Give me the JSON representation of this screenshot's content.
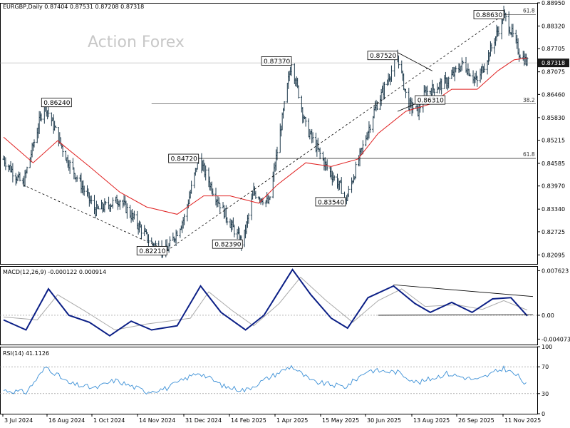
{
  "chart_data": [
    {
      "type": "bar",
      "title": "EURGBP,Daily  0.87404 0.87531 0.87208 0.87318",
      "symbol": "EURGBP",
      "timeframe": "Daily",
      "ohlc": {
        "open": 0.87404,
        "high": 0.87531,
        "low": 0.87208,
        "close": 0.87318
      },
      "current_price": "0.87318",
      "watermark": "Action Forex",
      "ylim": [
        0.8185,
        0.8895
      ],
      "y_ticks": [
        "0.88950",
        "0.88320",
        "0.87705",
        "0.87075",
        "0.86460",
        "0.85830",
        "0.85215",
        "0.84585",
        "0.83970",
        "0.83340",
        "0.82725",
        "0.82095"
      ],
      "x_ticks": [
        "3 Jul 2024",
        "16 Aug 2024",
        "1 Oct 2024",
        "14 Nov 2024",
        "31 Dec 2024",
        "14 Feb 2025",
        "1 Apr 2025",
        "15 May 2025",
        "30 Jun 2025",
        "13 Aug 2025",
        "26 Sep 2025",
        "11 Nov 2025"
      ],
      "price_path": [
        {
          "date": "2024-07-03",
          "price": 0.847
        },
        {
          "date": "2024-07-22",
          "price": 0.84
        },
        {
          "date": "2024-08-12",
          "price": 0.8624
        },
        {
          "date": "2024-09-03",
          "price": 0.847
        },
        {
          "date": "2024-10-01",
          "price": 0.833
        },
        {
          "date": "2024-10-25",
          "price": 0.836
        },
        {
          "date": "2024-11-25",
          "price": 0.824
        },
        {
          "date": "2024-12-10",
          "price": 0.8221
        },
        {
          "date": "2024-12-27",
          "price": 0.831
        },
        {
          "date": "2025-01-10",
          "price": 0.8472
        },
        {
          "date": "2025-01-25",
          "price": 0.838
        },
        {
          "date": "2025-02-07",
          "price": 0.831
        },
        {
          "date": "2025-02-22",
          "price": 0.8239
        },
        {
          "date": "2025-03-05",
          "price": 0.838
        },
        {
          "date": "2025-03-20",
          "price": 0.835
        },
        {
          "date": "2025-04-11",
          "price": 0.8737
        },
        {
          "date": "2025-04-25",
          "price": 0.856
        },
        {
          "date": "2025-05-15",
          "price": 0.845
        },
        {
          "date": "2025-05-30",
          "price": 0.839
        },
        {
          "date": "2025-06-03",
          "price": 0.8354
        },
        {
          "date": "2025-06-15",
          "price": 0.846
        },
        {
          "date": "2025-07-01",
          "price": 0.86
        },
        {
          "date": "2025-07-15",
          "price": 0.869
        },
        {
          "date": "2025-07-24",
          "price": 0.8752
        },
        {
          "date": "2025-08-03",
          "price": 0.862
        },
        {
          "date": "2025-08-13",
          "price": 0.86
        },
        {
          "date": "2025-08-20",
          "price": 0.865
        },
        {
          "date": "2025-09-10",
          "price": 0.868
        },
        {
          "date": "2025-09-26",
          "price": 0.873
        },
        {
          "date": "2025-10-10",
          "price": 0.868
        },
        {
          "date": "2025-10-25",
          "price": 0.878
        },
        {
          "date": "2025-11-05",
          "price": 0.8863
        },
        {
          "date": "2025-11-12",
          "price": 0.882
        },
        {
          "date": "2025-11-20",
          "price": 0.876
        },
        {
          "date": "2025-11-28",
          "price": 0.8732
        }
      ],
      "moving_average": [
        {
          "date": "2024-07-03",
          "value": 0.853
        },
        {
          "date": "2024-08-01",
          "value": 0.846
        },
        {
          "date": "2024-08-25",
          "value": 0.852
        },
        {
          "date": "2024-09-25",
          "value": 0.845
        },
        {
          "date": "2024-10-25",
          "value": 0.838
        },
        {
          "date": "2024-11-20",
          "value": 0.834
        },
        {
          "date": "2024-12-20",
          "value": 0.832
        },
        {
          "date": "2025-01-15",
          "value": 0.837
        },
        {
          "date": "2025-02-10",
          "value": 0.837
        },
        {
          "date": "2025-03-10",
          "value": 0.835
        },
        {
          "date": "2025-03-28",
          "value": 0.84
        },
        {
          "date": "2025-04-25",
          "value": 0.846
        },
        {
          "date": "2025-05-20",
          "value": 0.845
        },
        {
          "date": "2025-06-15",
          "value": 0.847
        },
        {
          "date": "2025-07-05",
          "value": 0.854
        },
        {
          "date": "2025-08-01",
          "value": 0.86
        },
        {
          "date": "2025-08-25",
          "value": 0.862
        },
        {
          "date": "2025-09-15",
          "value": 0.866
        },
        {
          "date": "2025-10-10",
          "value": 0.866
        },
        {
          "date": "2025-10-30",
          "value": 0.871
        },
        {
          "date": "2025-11-15",
          "value": 0.874
        },
        {
          "date": "2025-11-28",
          "value": 0.8745
        }
      ],
      "annotations": [
        {
          "label": "0.86240",
          "date": "2024-08-12",
          "price": 0.8624,
          "side": "right"
        },
        {
          "label": "0.82210",
          "date": "2024-12-10",
          "price": 0.8221,
          "side": "left"
        },
        {
          "label": "0.84720",
          "date": "2025-01-10",
          "price": 0.8472,
          "side": "left"
        },
        {
          "label": "0.82390",
          "date": "2025-02-22",
          "price": 0.8239,
          "side": "left"
        },
        {
          "label": "0.87370",
          "date": "2025-04-11",
          "price": 0.8737,
          "side": "left"
        },
        {
          "label": "0.83540",
          "date": "2025-06-03",
          "price": 0.8354,
          "side": "left"
        },
        {
          "label": "0.87520",
          "date": "2025-07-24",
          "price": 0.8752,
          "side": "left"
        },
        {
          "label": "0.86310",
          "date": "2025-08-13",
          "price": 0.8631,
          "side": "right"
        },
        {
          "label": "0.88630",
          "date": "2025-11-05",
          "price": 0.8863,
          "side": "left"
        }
      ],
      "fib_levels": [
        {
          "label": "61.8",
          "price": 0.8863,
          "from": "2025-11-05"
        },
        {
          "label": "38.2",
          "price": 0.862,
          "from": "2024-11-25"
        },
        {
          "label": "61.8",
          "price": 0.8472,
          "from": "2025-01-10"
        }
      ],
      "trendlines": [
        {
          "style": "dashed",
          "from": {
            "date": "2024-07-22",
            "price": 0.84
          },
          "to": {
            "date": "2024-12-10",
            "price": 0.8221
          }
        },
        {
          "style": "dashed",
          "from": {
            "date": "2024-12-10",
            "price": 0.8221
          },
          "to": {
            "date": "2025-11-05",
            "price": 0.8863
          }
        },
        {
          "style": "solid",
          "from": {
            "date": "2025-07-24",
            "price": 0.876
          },
          "to": {
            "date": "2025-08-27",
            "price": 0.871
          }
        },
        {
          "style": "solid",
          "from": {
            "date": "2025-07-24",
            "price": 0.86
          },
          "to": {
            "date": "2025-08-27",
            "price": 0.864
          }
        }
      ]
    },
    {
      "type": "line",
      "title": "MACD(12,26,9) -0.000122 0.000914",
      "ylim": [
        -0.005,
        0.0084
      ],
      "y_ticks": [
        "0.007623",
        "0.00",
        "-0.004073"
      ],
      "series": [
        {
          "name": "MACD",
          "points": [
            {
              "date": "2024-07-03",
              "value": -0.0008
            },
            {
              "date": "2024-07-25",
              "value": -0.0025
            },
            {
              "date": "2024-08-16",
              "value": 0.0045
            },
            {
              "date": "2024-09-05",
              "value": 0.0
            },
            {
              "date": "2024-09-25",
              "value": -0.0012
            },
            {
              "date": "2024-10-15",
              "value": -0.0035
            },
            {
              "date": "2024-11-05",
              "value": -0.001
            },
            {
              "date": "2024-11-25",
              "value": -0.0025
            },
            {
              "date": "2024-12-20",
              "value": -0.0018
            },
            {
              "date": "2025-01-12",
              "value": 0.005
            },
            {
              "date": "2025-02-01",
              "value": 0.0005
            },
            {
              "date": "2025-02-25",
              "value": -0.0025
            },
            {
              "date": "2025-03-15",
              "value": 0.0
            },
            {
              "date": "2025-04-12",
              "value": 0.0078
            },
            {
              "date": "2025-04-30",
              "value": 0.0035
            },
            {
              "date": "2025-05-20",
              "value": -0.0005
            },
            {
              "date": "2025-06-05",
              "value": -0.0022
            },
            {
              "date": "2025-06-25",
              "value": 0.003
            },
            {
              "date": "2025-07-20",
              "value": 0.005
            },
            {
              "date": "2025-08-10",
              "value": 0.002
            },
            {
              "date": "2025-08-25",
              "value": 0.0005
            },
            {
              "date": "2025-09-15",
              "value": 0.0022
            },
            {
              "date": "2025-10-05",
              "value": 0.0005
            },
            {
              "date": "2025-10-25",
              "value": 0.0028
            },
            {
              "date": "2025-11-12",
              "value": 0.003
            },
            {
              "date": "2025-11-28",
              "value": -0.0001
            }
          ]
        },
        {
          "name": "Signal",
          "points": [
            {
              "date": "2024-07-03",
              "value": -0.0003
            },
            {
              "date": "2024-08-05",
              "value": -0.0008
            },
            {
              "date": "2024-08-25",
              "value": 0.0035
            },
            {
              "date": "2024-09-20",
              "value": 0.0008
            },
            {
              "date": "2024-10-20",
              "value": -0.0025
            },
            {
              "date": "2024-11-20",
              "value": -0.0015
            },
            {
              "date": "2025-01-02",
              "value": -0.0005
            },
            {
              "date": "2025-01-20",
              "value": 0.004
            },
            {
              "date": "2025-02-12",
              "value": 0.0008
            },
            {
              "date": "2025-03-05",
              "value": -0.0018
            },
            {
              "date": "2025-03-30",
              "value": 0.002
            },
            {
              "date": "2025-04-20",
              "value": 0.0065
            },
            {
              "date": "2025-05-15",
              "value": 0.0025
            },
            {
              "date": "2025-06-10",
              "value": -0.0012
            },
            {
              "date": "2025-07-05",
              "value": 0.0025
            },
            {
              "date": "2025-07-28",
              "value": 0.0045
            },
            {
              "date": "2025-08-20",
              "value": 0.0015
            },
            {
              "date": "2025-09-20",
              "value": 0.0018
            },
            {
              "date": "2025-10-15",
              "value": 0.001
            },
            {
              "date": "2025-11-05",
              "value": 0.0025
            },
            {
              "date": "2025-11-28",
              "value": 0.0009
            }
          ]
        }
      ],
      "trendlines": [
        {
          "style": "solid",
          "from": {
            "date": "2025-07-20",
            "value": 0.0052
          },
          "to": {
            "date": "2025-11-28",
            "value": 0.0032
          }
        },
        {
          "style": "solid",
          "from": {
            "date": "2025-07-05",
            "value": 0.0
          },
          "to": {
            "date": "2025-11-28",
            "value": 0.0001
          }
        }
      ]
    },
    {
      "type": "line",
      "title": "RSI(14) 41.1126",
      "ylim": [
        0,
        100
      ],
      "y_ticks": [
        "100",
        "70",
        "30",
        "0"
      ],
      "levels": [
        70,
        30
      ],
      "series": [
        {
          "name": "RSI",
          "points": [
            {
              "date": "2024-07-03",
              "value": 35
            },
            {
              "date": "2024-07-25",
              "value": 32
            },
            {
              "date": "2024-08-14",
              "value": 70
            },
            {
              "date": "2024-09-05",
              "value": 45
            },
            {
              "date": "2024-10-01",
              "value": 38
            },
            {
              "date": "2024-10-20",
              "value": 50
            },
            {
              "date": "2024-11-20",
              "value": 33
            },
            {
              "date": "2024-12-10",
              "value": 38
            },
            {
              "date": "2025-01-10",
              "value": 62
            },
            {
              "date": "2025-02-05",
              "value": 40
            },
            {
              "date": "2025-02-25",
              "value": 35
            },
            {
              "date": "2025-03-15",
              "value": 50
            },
            {
              "date": "2025-04-11",
              "value": 71
            },
            {
              "date": "2025-05-01",
              "value": 48
            },
            {
              "date": "2025-06-03",
              "value": 40
            },
            {
              "date": "2025-06-25",
              "value": 65
            },
            {
              "date": "2025-07-24",
              "value": 62
            },
            {
              "date": "2025-08-13",
              "value": 46
            },
            {
              "date": "2025-09-10",
              "value": 60
            },
            {
              "date": "2025-10-10",
              "value": 50
            },
            {
              "date": "2025-11-05",
              "value": 68
            },
            {
              "date": "2025-11-20",
              "value": 55
            },
            {
              "date": "2025-11-28",
              "value": 41
            }
          ]
        }
      ]
    }
  ]
}
